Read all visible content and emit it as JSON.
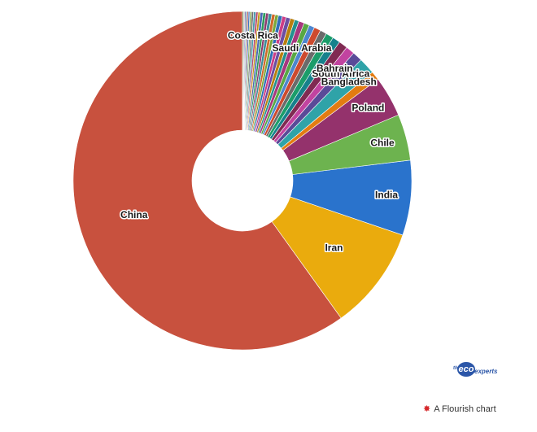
{
  "chart_data": {
    "type": "pie",
    "donut": true,
    "title": "",
    "legend": "none",
    "slices": [
      {
        "label": "China",
        "value": 57.0,
        "color": "#c8513e",
        "show_label": true
      },
      {
        "label": "Iran",
        "value": 9.4,
        "color": "#eaab0d",
        "show_label": true
      },
      {
        "label": "India",
        "value": 6.8,
        "color": "#2a73cc",
        "show_label": true
      },
      {
        "label": "Chile",
        "value": 4.2,
        "color": "#6db34f",
        "show_label": true
      },
      {
        "label": "Poland",
        "value": 3.7,
        "color": "#94326c",
        "show_label": true
      },
      {
        "label": "",
        "value": 0.8,
        "color": "#e37c11",
        "show_label": false
      },
      {
        "label": "Bangladesh",
        "value": 1.5,
        "color": "#2fa3a8",
        "show_label": true
      },
      {
        "label": "South Africa",
        "value": 0.9,
        "color": "#5a4a98",
        "show_label": true
      },
      {
        "label": "Bahrain",
        "value": 0.8,
        "color": "#c243a0",
        "show_label": true
      },
      {
        "label": "",
        "value": 0.8,
        "color": "#802a52",
        "show_label": false
      },
      {
        "label": "",
        "value": 0.7,
        "color": "#16818c",
        "show_label": false
      },
      {
        "label": "",
        "value": 0.7,
        "color": "#1b9d6a",
        "show_label": false
      },
      {
        "label": "",
        "value": 0.6,
        "color": "#6b6b6b",
        "show_label": false
      },
      {
        "label": "",
        "value": 0.6,
        "color": "#cd4a2e",
        "show_label": false
      },
      {
        "label": "Saudi Arabia",
        "value": 0.5,
        "color": "#4d86cf",
        "show_label": true
      },
      {
        "label": "",
        "value": 0.5,
        "color": "#58a844",
        "show_label": false
      },
      {
        "label": "",
        "value": 0.5,
        "color": "#a7367e",
        "show_label": false
      },
      {
        "label": "",
        "value": 0.4,
        "color": "#23928f",
        "show_label": false
      },
      {
        "label": "",
        "value": 0.4,
        "color": "#b97f0f",
        "show_label": false
      },
      {
        "label": "",
        "value": 0.4,
        "color": "#6b4ea3",
        "show_label": false
      },
      {
        "label": "",
        "value": 0.35,
        "color": "#cc3d85",
        "show_label": false
      },
      {
        "label": "",
        "value": 0.35,
        "color": "#2f6fb7",
        "show_label": false
      },
      {
        "label": "",
        "value": 0.3,
        "color": "#7aa83a",
        "show_label": false
      },
      {
        "label": "",
        "value": 0.3,
        "color": "#d06a2a",
        "show_label": false
      },
      {
        "label": "",
        "value": 0.3,
        "color": "#3d8f9a",
        "show_label": false
      },
      {
        "label": "",
        "value": 0.25,
        "color": "#8e3a6f",
        "show_label": false
      },
      {
        "label": "",
        "value": 0.25,
        "color": "#2c9a5c",
        "show_label": false
      },
      {
        "label": "",
        "value": 0.25,
        "color": "#4a67b5",
        "show_label": false
      },
      {
        "label": "",
        "value": 0.2,
        "color": "#c59b14",
        "show_label": false
      },
      {
        "label": "",
        "value": 0.2,
        "color": "#b5486a",
        "show_label": false
      },
      {
        "label": "Costa Rica",
        "value": 0.2,
        "color": "#4a9bb0",
        "show_label": true
      },
      {
        "label": "",
        "value": 0.18,
        "color": "#6e6e6e",
        "show_label": false
      },
      {
        "label": "",
        "value": 0.16,
        "color": "#8fb05a",
        "show_label": false
      },
      {
        "label": "",
        "value": 0.14,
        "color": "#3e74c4",
        "show_label": false
      },
      {
        "label": "",
        "value": 0.12,
        "color": "#aa3b3b",
        "show_label": false
      },
      {
        "label": "",
        "value": 0.1,
        "color": "#2a9b9b",
        "show_label": false
      },
      {
        "label": "",
        "value": 0.1,
        "color": "#7d5ab0",
        "show_label": false
      },
      {
        "label": "",
        "value": 0.1,
        "color": "#9a9a9a",
        "show_label": false
      },
      {
        "label": "",
        "value": 0.1,
        "color": "#5b8a3a",
        "show_label": false
      }
    ]
  },
  "branding": {
    "eco_the": "the",
    "eco_word": "eco",
    "eco_experts": "experts",
    "eco_color": "#2b56a8",
    "flourish_icon": "flourish-starburst-icon",
    "flourish_text": "A Flourish chart"
  }
}
